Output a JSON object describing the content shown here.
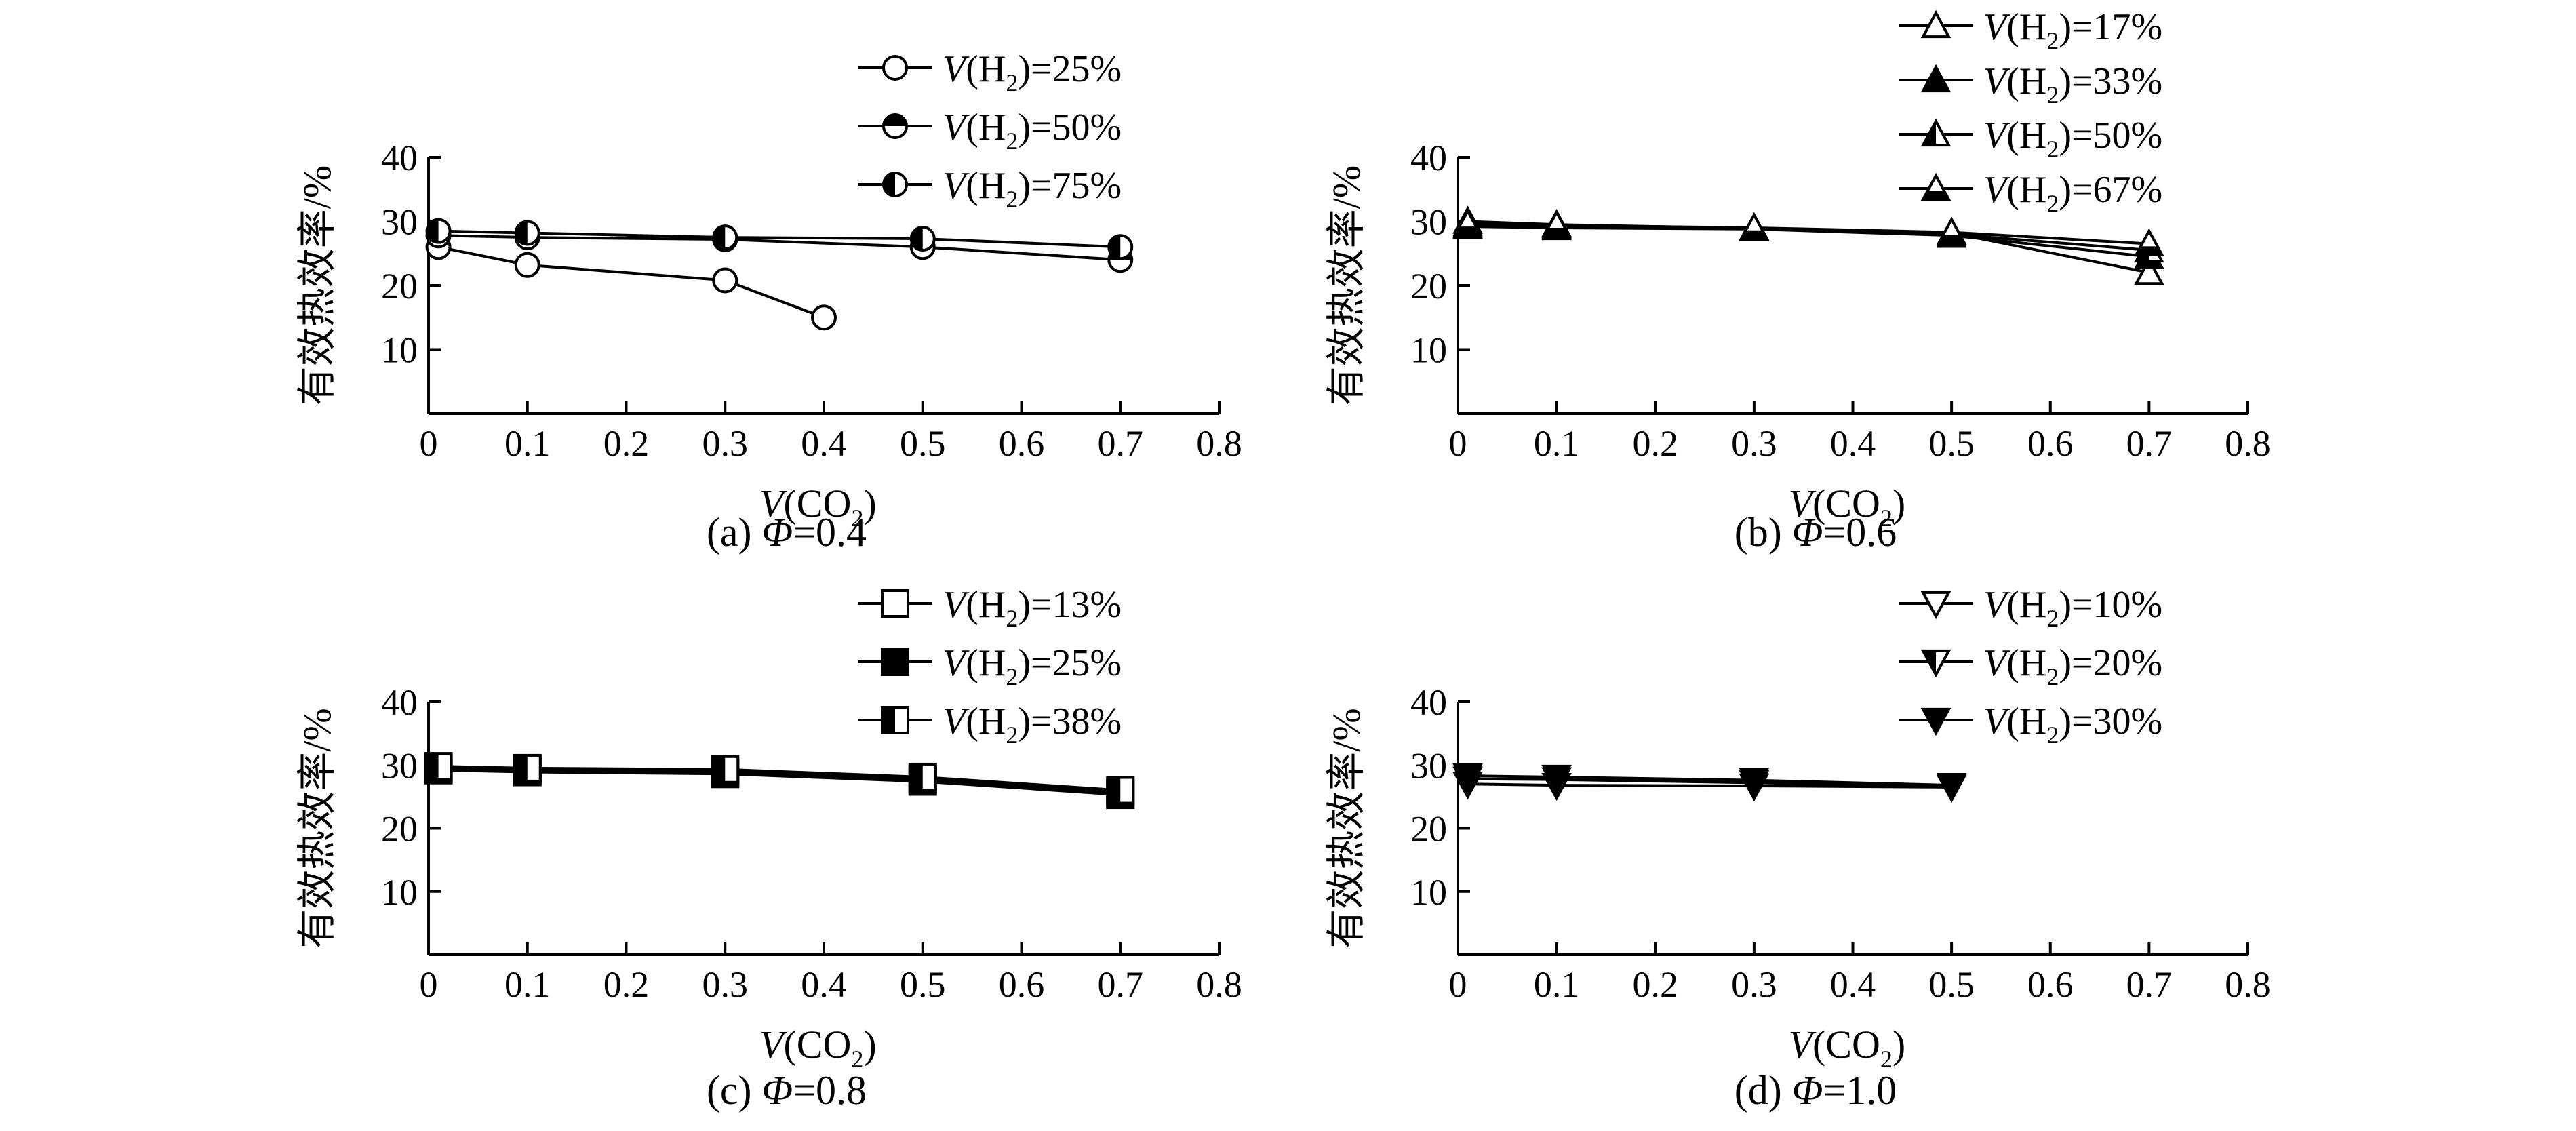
{
  "y_axis_label": "有效热效率/%",
  "chart_data": [
    {
      "type": "line",
      "caption": "(a) Φ=0.4",
      "xlabel": "V(CO2)",
      "ylabel": "有效热效率/%",
      "xlim": [
        0,
        0.8
      ],
      "ylim": [
        0,
        40
      ],
      "x_ticks": [
        "0",
        "0.1",
        "0.2",
        "0.3",
        "0.4",
        "0.5",
        "0.6",
        "0.7",
        "0.8"
      ],
      "y_ticks": [
        "10",
        "20",
        "30",
        "40"
      ],
      "grid": false,
      "legend_position": "top-right",
      "series": [
        {
          "name": "V(H2)=25%",
          "marker": "circle-open",
          "x": [
            0.01,
            0.1,
            0.3,
            0.4
          ],
          "y": [
            26,
            23.2,
            20.8,
            15
          ]
        },
        {
          "name": "V(H2)=50%",
          "marker": "circle-top-filled",
          "x": [
            0.01,
            0.1,
            0.3,
            0.5,
            0.7
          ],
          "y": [
            27.8,
            27.5,
            27.2,
            26,
            24
          ]
        },
        {
          "name": "V(H2)=75%",
          "marker": "circle-left-filled",
          "x": [
            0.01,
            0.1,
            0.3,
            0.5,
            0.7
          ],
          "y": [
            28.5,
            28.2,
            27.5,
            27.3,
            26
          ]
        }
      ]
    },
    {
      "type": "line",
      "caption": "(b) Φ=0.6",
      "xlabel": "V(CO2)",
      "ylabel": "有效热效率/%",
      "xlim": [
        0,
        0.8
      ],
      "ylim": [
        0,
        40
      ],
      "x_ticks": [
        "0",
        "0.1",
        "0.2",
        "0.3",
        "0.4",
        "0.5",
        "0.6",
        "0.7",
        "0.8"
      ],
      "y_ticks": [
        "10",
        "20",
        "30",
        "40"
      ],
      "grid": false,
      "legend_position": "top-right",
      "series": [
        {
          "name": "V(H2)=17%",
          "marker": "triangle-open",
          "x": [
            0.01,
            0.1,
            0.3,
            0.5,
            0.7
          ],
          "y": [
            30,
            29.5,
            28.9,
            28.2,
            22
          ]
        },
        {
          "name": "V(H2)=33%",
          "marker": "triangle-filled",
          "x": [
            0.01,
            0.1,
            0.3,
            0.5,
            0.7
          ],
          "y": [
            29.2,
            29,
            28.8,
            27.8,
            24.5
          ]
        },
        {
          "name": "V(H2)=50%",
          "marker": "triangle-left-filled",
          "x": [
            0.01,
            0.1,
            0.3,
            0.5,
            0.7
          ],
          "y": [
            29.4,
            29.2,
            28.9,
            28,
            25.5
          ]
        },
        {
          "name": "V(H2)=67%",
          "marker": "triangle-bottom-filled",
          "x": [
            0.01,
            0.1,
            0.3,
            0.5,
            0.7
          ],
          "y": [
            29.6,
            29.4,
            29,
            28.3,
            26.5
          ]
        }
      ]
    },
    {
      "type": "line",
      "caption": "(c) Φ=0.8",
      "xlabel": "V(CO2)",
      "ylabel": "有效热效率/%",
      "xlim": [
        0,
        0.8
      ],
      "ylim": [
        0,
        40
      ],
      "x_ticks": [
        "0",
        "0.1",
        "0.2",
        "0.3",
        "0.4",
        "0.5",
        "0.6",
        "0.7",
        "0.8"
      ],
      "y_ticks": [
        "10",
        "20",
        "30",
        "40"
      ],
      "grid": false,
      "legend_position": "top-right",
      "series": [
        {
          "name": "V(H2)=13%",
          "marker": "square-open",
          "x": [
            0.01,
            0.1,
            0.3,
            0.5,
            0.7
          ],
          "y": [
            29.2,
            28.9,
            28.6,
            27.4,
            25.3
          ]
        },
        {
          "name": "V(H2)=25%",
          "marker": "square-filled",
          "x": [
            0.01,
            0.1,
            0.3,
            0.5,
            0.7
          ],
          "y": [
            29.5,
            29.2,
            28.9,
            27.7,
            25.6
          ]
        },
        {
          "name": "V(H2)=38%",
          "marker": "square-left-filled",
          "x": [
            0.01,
            0.1,
            0.3,
            0.5,
            0.7
          ],
          "y": [
            29.8,
            29.5,
            29.3,
            28.1,
            26
          ]
        }
      ]
    },
    {
      "type": "line",
      "caption": "(d) Φ=1.0",
      "xlabel": "V(CO2)",
      "ylabel": "有效热效率/%",
      "xlim": [
        0,
        0.8
      ],
      "ylim": [
        0,
        40
      ],
      "x_ticks": [
        "0",
        "0.1",
        "0.2",
        "0.3",
        "0.4",
        "0.5",
        "0.6",
        "0.7",
        "0.8"
      ],
      "y_ticks": [
        "10",
        "20",
        "30",
        "40"
      ],
      "grid": false,
      "legend_position": "top-right",
      "series": [
        {
          "name": "V(H2)=10%",
          "marker": "triangle-down-open",
          "x": [
            0.01,
            0.1,
            0.3,
            0.5
          ],
          "y": [
            27,
            26.8,
            26.7,
            26.5
          ]
        },
        {
          "name": "V(H2)=20%",
          "marker": "triangle-down-half",
          "x": [
            0.01,
            0.1,
            0.3,
            0.5
          ],
          "y": [
            27.8,
            27.7,
            27.2,
            26.6
          ]
        },
        {
          "name": "V(H2)=30%",
          "marker": "triangle-down-filled",
          "x": [
            0.01,
            0.1,
            0.3,
            0.5
          ],
          "y": [
            28.3,
            28.1,
            27.6,
            26.8
          ]
        }
      ]
    }
  ]
}
